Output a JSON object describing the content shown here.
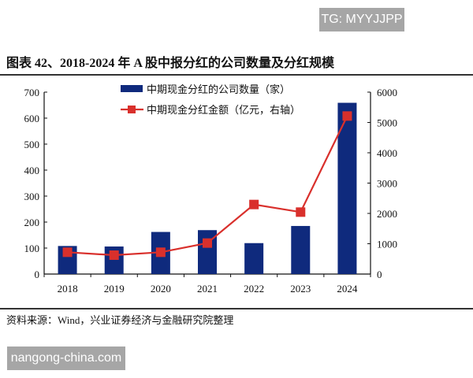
{
  "watermark_top": "TG: MYYJJPP",
  "watermark_bottom": "nangong-china.com",
  "title": "图表 42、2018-2024 年 A 股中报分红的公司数量及分红规模",
  "source": "资料来源：Wind，兴业证券经济与金融研究院整理",
  "chart_data": {
    "type": "bar+line",
    "categories": [
      "2018",
      "2019",
      "2020",
      "2021",
      "2022",
      "2023",
      "2024"
    ],
    "series": [
      {
        "name": "中期现金分红的公司数量（家）",
        "type": "bar",
        "axis": "left",
        "color": "#0f2a7d",
        "values": [
          108,
          106,
          162,
          169,
          119,
          185,
          659
        ]
      },
      {
        "name": "中期现金分红金额（亿元，右轴）",
        "type": "line",
        "axis": "right",
        "color": "#d9302c",
        "values": [
          719,
          623,
          719,
          1022,
          2294,
          2043,
          5212
        ]
      }
    ],
    "left_axis": {
      "range": [
        0,
        700
      ],
      "ticks": [
        "0",
        "100",
        "200",
        "300",
        "400",
        "500",
        "600",
        "700"
      ]
    },
    "right_axis": {
      "range": [
        0,
        6000
      ],
      "ticks": [
        "0",
        "1000",
        "2000",
        "3000",
        "4000",
        "5000",
        "6000"
      ]
    },
    "legend_placement": "top-center",
    "grid": false
  }
}
